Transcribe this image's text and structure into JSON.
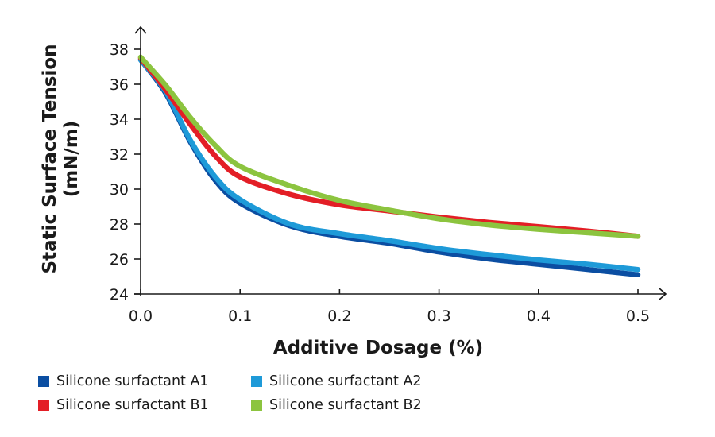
{
  "chart_data": {
    "type": "line",
    "title": "",
    "xlabel": "Additive Dosage (%)",
    "ylabel_line1": "Static Surface Tension",
    "ylabel_line2": "(mN/m)",
    "xlim": [
      0,
      0.5
    ],
    "ylim": [
      24,
      38
    ],
    "xticks": [
      0.0,
      0.1,
      0.2,
      0.3,
      0.4,
      0.5
    ],
    "xtick_labels": [
      "0.0",
      "0.1",
      "0.2",
      "0.3",
      "0.4",
      "0.5"
    ],
    "yticks": [
      24,
      26,
      28,
      30,
      32,
      34,
      36,
      38
    ],
    "ytick_labels": [
      "24",
      "26",
      "28",
      "30",
      "32",
      "34",
      "36",
      "38"
    ],
    "grid": false,
    "legend_position": "bottom",
    "x": [
      0.0,
      0.025,
      0.05,
      0.075,
      0.1,
      0.15,
      0.2,
      0.25,
      0.3,
      0.35,
      0.4,
      0.45,
      0.5
    ],
    "series": [
      {
        "name": "Silicone surfactant A1",
        "color": "#0b4ea2",
        "values": [
          37.4,
          35.5,
          32.7,
          30.5,
          29.2,
          27.9,
          27.3,
          26.9,
          26.4,
          26.0,
          25.7,
          25.4,
          25.1
        ]
      },
      {
        "name": "Silicone surfactant A2",
        "color": "#1e9ad8",
        "values": [
          37.4,
          35.6,
          32.8,
          30.7,
          29.4,
          28.0,
          27.45,
          27.05,
          26.6,
          26.25,
          25.95,
          25.7,
          25.4
        ]
      },
      {
        "name": "Silicone surfactant B1",
        "color": "#e31e26",
        "values": [
          37.5,
          35.7,
          33.7,
          31.9,
          30.7,
          29.7,
          29.1,
          28.75,
          28.4,
          28.1,
          27.85,
          27.6,
          27.3
        ]
      },
      {
        "name": "Silicone surfactant B2",
        "color": "#8cc43f",
        "values": [
          37.55,
          35.95,
          34.1,
          32.5,
          31.3,
          30.2,
          29.35,
          28.8,
          28.3,
          27.95,
          27.7,
          27.5,
          27.3
        ]
      }
    ]
  }
}
